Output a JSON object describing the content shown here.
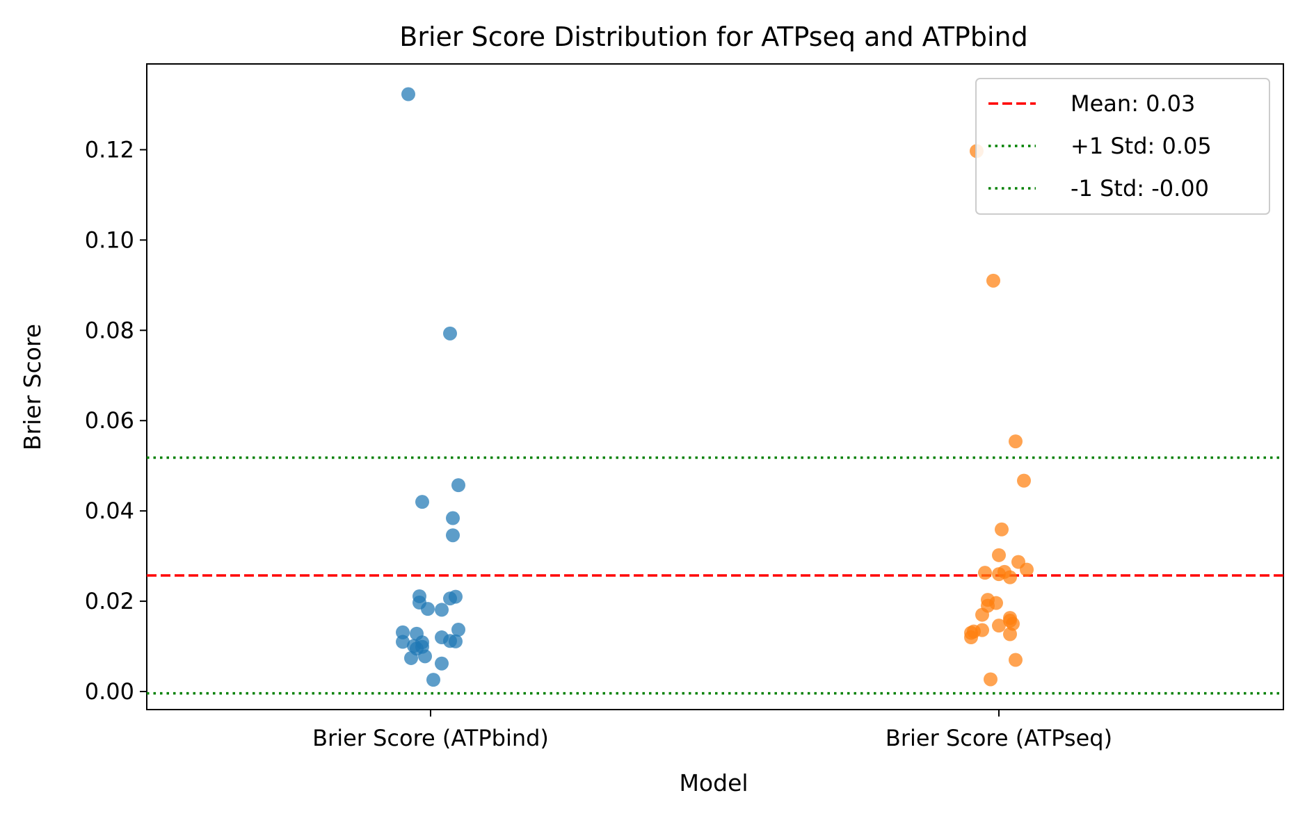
{
  "chart_data": {
    "type": "scatter",
    "title": "Brier Score Distribution for ATPseq and ATPbind",
    "xlabel": "Model",
    "ylabel": "Brier Score",
    "categories": [
      "Brier Score (ATPbind)",
      "Brier Score (ATPseq)"
    ],
    "ylim": [
      -0.004,
      0.139
    ],
    "y_ticks": [
      "0.00",
      "0.02",
      "0.04",
      "0.06",
      "0.08",
      "0.10",
      "0.12"
    ],
    "grid": false,
    "legend_position": "top-right",
    "series": [
      {
        "category": "Brier Score (ATPbind)",
        "color": "#1f77b4",
        "points": [
          {
            "jitter": -0.08,
            "y": 0.1323
          },
          {
            "jitter": 0.07,
            "y": 0.0793
          },
          {
            "jitter": 0.1,
            "y": 0.0457
          },
          {
            "jitter": -0.03,
            "y": 0.042
          },
          {
            "jitter": 0.08,
            "y": 0.0384
          },
          {
            "jitter": 0.08,
            "y": 0.0346
          },
          {
            "jitter": -0.04,
            "y": 0.0211
          },
          {
            "jitter": 0.09,
            "y": 0.021
          },
          {
            "jitter": 0.07,
            "y": 0.0206
          },
          {
            "jitter": -0.04,
            "y": 0.0197
          },
          {
            "jitter": -0.01,
            "y": 0.0183
          },
          {
            "jitter": 0.04,
            "y": 0.0181
          },
          {
            "jitter": 0.1,
            "y": 0.0137
          },
          {
            "jitter": -0.1,
            "y": 0.0131
          },
          {
            "jitter": -0.05,
            "y": 0.0128
          },
          {
            "jitter": 0.04,
            "y": 0.012
          },
          {
            "jitter": 0.07,
            "y": 0.0112
          },
          {
            "jitter": 0.09,
            "y": 0.0111
          },
          {
            "jitter": -0.1,
            "y": 0.011
          },
          {
            "jitter": -0.03,
            "y": 0.0109
          },
          {
            "jitter": -0.06,
            "y": 0.0101
          },
          {
            "jitter": -0.03,
            "y": 0.0099
          },
          {
            "jitter": -0.05,
            "y": 0.0095
          },
          {
            "jitter": -0.02,
            "y": 0.0078
          },
          {
            "jitter": -0.07,
            "y": 0.0074
          },
          {
            "jitter": 0.04,
            "y": 0.0062
          },
          {
            "jitter": 0.01,
            "y": 0.0026
          }
        ]
      },
      {
        "category": "Brier Score (ATPseq)",
        "color": "#ff7f0e",
        "points": [
          {
            "jitter": -0.08,
            "y": 0.1197
          },
          {
            "jitter": -0.02,
            "y": 0.091
          },
          {
            "jitter": 0.06,
            "y": 0.0554
          },
          {
            "jitter": 0.09,
            "y": 0.0467
          },
          {
            "jitter": 0.01,
            "y": 0.0359
          },
          {
            "jitter": 0.0,
            "y": 0.0302
          },
          {
            "jitter": 0.07,
            "y": 0.0287
          },
          {
            "jitter": 0.1,
            "y": 0.027
          },
          {
            "jitter": 0.02,
            "y": 0.0265
          },
          {
            "jitter": -0.05,
            "y": 0.0263
          },
          {
            "jitter": 0.0,
            "y": 0.026
          },
          {
            "jitter": 0.04,
            "y": 0.0253
          },
          {
            "jitter": -0.04,
            "y": 0.0203
          },
          {
            "jitter": -0.01,
            "y": 0.0196
          },
          {
            "jitter": -0.04,
            "y": 0.019
          },
          {
            "jitter": -0.06,
            "y": 0.017
          },
          {
            "jitter": 0.04,
            "y": 0.0163
          },
          {
            "jitter": 0.04,
            "y": 0.0157
          },
          {
            "jitter": 0.05,
            "y": 0.015
          },
          {
            "jitter": 0.0,
            "y": 0.0146
          },
          {
            "jitter": -0.06,
            "y": 0.0136
          },
          {
            "jitter": -0.09,
            "y": 0.0133
          },
          {
            "jitter": -0.1,
            "y": 0.013
          },
          {
            "jitter": 0.04,
            "y": 0.0127
          },
          {
            "jitter": -0.1,
            "y": 0.012
          },
          {
            "jitter": 0.06,
            "y": 0.007
          },
          {
            "jitter": -0.03,
            "y": 0.0027
          }
        ]
      }
    ],
    "reference_lines": [
      {
        "label": "Mean: 0.03",
        "value": 0.0257,
        "color": "#ff0000",
        "style": "dashed"
      },
      {
        "label": "+1 Std: 0.05",
        "value": 0.0518,
        "color": "#008000",
        "style": "dotted"
      },
      {
        "label": "-1 Std: -0.00",
        "value": -0.0004,
        "color": "#008000",
        "style": "dotted"
      }
    ]
  }
}
